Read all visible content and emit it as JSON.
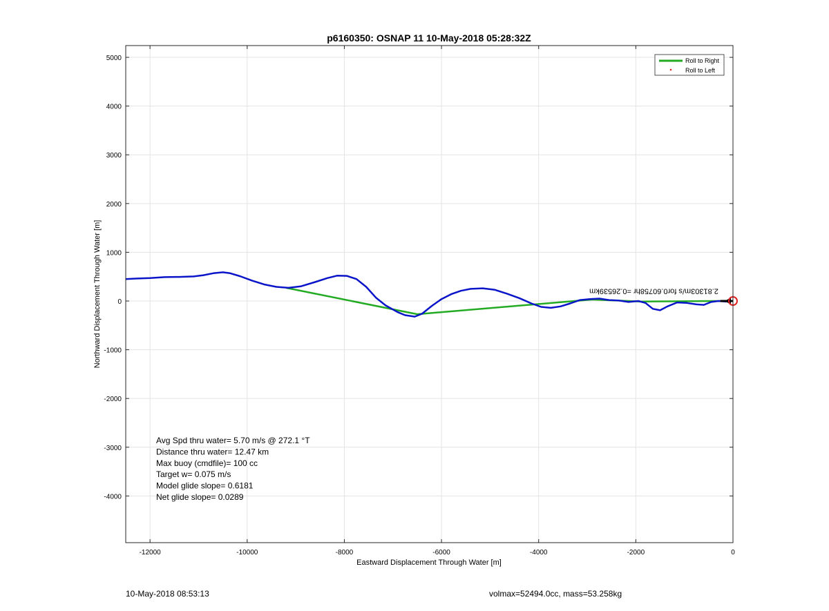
{
  "chart_data": {
    "type": "line",
    "title": "p6160350: OSNAP 11 10-May-2018 05:28:32Z",
    "xlabel": "Eastward Displacement Through Water [m]",
    "ylabel": "Northward Displacement Through Water [m]",
    "xlim": [
      -12500,
      0
    ],
    "ylim": [
      -5000,
      5200
    ],
    "xticks": [
      -12000,
      -10000,
      -8000,
      -6000,
      -4000,
      -2000,
      0
    ],
    "yticks": [
      -4000,
      -3000,
      -2000,
      -1000,
      0,
      1000,
      2000,
      3000,
      4000,
      5000
    ],
    "grid": true,
    "legend": {
      "position": "top-right",
      "entries": [
        {
          "label": "Roll to Right",
          "color": "#22aa22",
          "marker": "line"
        },
        {
          "label": "Roll to Left",
          "color": "#e02020",
          "marker": "dot"
        }
      ]
    },
    "series": [
      {
        "name": "Roll to Right",
        "color": "#22aa22",
        "points": [
          [
            -9200,
            270
          ],
          [
            -6500,
            -270
          ],
          [
            -2900,
            30
          ],
          [
            -1900,
            -10
          ],
          [
            -300,
            0
          ],
          [
            0,
            0
          ]
        ]
      },
      {
        "color": "#0a14c8",
        "points": [
          [
            -12500,
            450
          ],
          [
            -12300,
            460
          ],
          [
            -12000,
            470
          ],
          [
            -11700,
            490
          ],
          [
            -11400,
            495
          ],
          [
            -11100,
            505
          ],
          [
            -10900,
            530
          ],
          [
            -10700,
            570
          ],
          [
            -10500,
            590
          ],
          [
            -10350,
            570
          ],
          [
            -10150,
            510
          ],
          [
            -9900,
            420
          ],
          [
            -9650,
            340
          ],
          [
            -9400,
            290
          ],
          [
            -9150,
            270
          ],
          [
            -8900,
            300
          ],
          [
            -8600,
            390
          ],
          [
            -8350,
            470
          ],
          [
            -8150,
            520
          ],
          [
            -7950,
            515
          ],
          [
            -7750,
            450
          ],
          [
            -7550,
            290
          ],
          [
            -7350,
            70
          ],
          [
            -7150,
            -90
          ],
          [
            -6900,
            -230
          ],
          [
            -6750,
            -290
          ],
          [
            -6550,
            -320
          ],
          [
            -6400,
            -260
          ],
          [
            -6200,
            -100
          ],
          [
            -6000,
            40
          ],
          [
            -5800,
            140
          ],
          [
            -5600,
            210
          ],
          [
            -5400,
            250
          ],
          [
            -5150,
            260
          ],
          [
            -4900,
            230
          ],
          [
            -4650,
            150
          ],
          [
            -4400,
            60
          ],
          [
            -4150,
            -50
          ],
          [
            -3950,
            -120
          ],
          [
            -3750,
            -140
          ],
          [
            -3550,
            -110
          ],
          [
            -3350,
            -50
          ],
          [
            -3150,
            20
          ],
          [
            -2950,
            40
          ],
          [
            -2750,
            50
          ],
          [
            -2550,
            20
          ],
          [
            -2350,
            10
          ],
          [
            -2150,
            -20
          ],
          [
            -1950,
            0
          ],
          [
            -1800,
            -40
          ],
          [
            -1650,
            -160
          ],
          [
            -1500,
            -190
          ],
          [
            -1350,
            -110
          ],
          [
            -1150,
            -30
          ],
          [
            -950,
            -40
          ],
          [
            -750,
            -70
          ],
          [
            -600,
            -80
          ],
          [
            -450,
            -20
          ],
          [
            -300,
            0
          ],
          [
            -150,
            -10
          ],
          [
            0,
            0
          ]
        ]
      }
    ],
    "end_marker": {
      "x": 0,
      "y": 0,
      "color": "#e02020"
    },
    "current_label": {
      "text": "2.81303m/s for0.60758hr =0.26539km",
      "x": -300,
      "y": 250,
      "rotation": 180
    },
    "annotations": [
      "Avg Spd thru water=  5.70 m/s @ 272.1 °T",
      "Distance thru water= 12.47 km",
      "Max buoy (cmdfile)= 100 cc",
      "Target w= 0.075 m/s",
      "Model glide slope= 0.6181",
      "Net glide slope= 0.0289"
    ]
  },
  "footer": {
    "left": "10-May-2018 08:53:13",
    "right": "volmax=52494.0cc, mass=53.258kg"
  }
}
